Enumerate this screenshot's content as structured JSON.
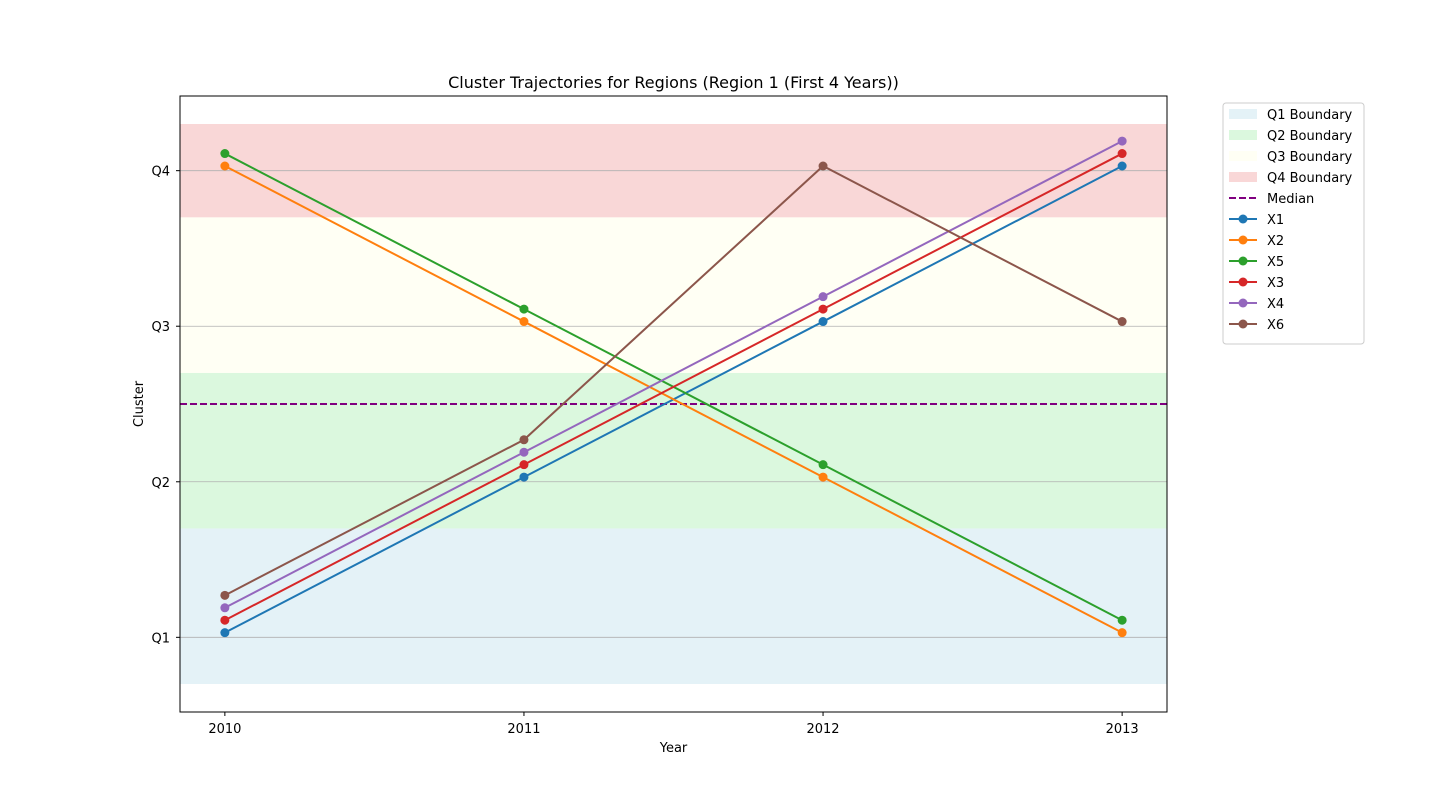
{
  "chart_data": {
    "type": "line",
    "title": "Cluster Trajectories for Regions (Region 1 (First 4 Years))",
    "xlabel": "Year",
    "ylabel": "Cluster",
    "x": [
      2010,
      2011,
      2012,
      2013
    ],
    "x_tick_labels": [
      "2010",
      "2011",
      "2012",
      "2013"
    ],
    "y_ticks": [
      1,
      2,
      3,
      4
    ],
    "y_tick_labels": [
      "Q1",
      "Q2",
      "Q3",
      "Q4"
    ],
    "xlim": [
      2009.85,
      2013.15
    ],
    "ylim": [
      0.52,
      4.48
    ],
    "grid": "horizontal",
    "legend_position": "outside top-right",
    "bands": [
      {
        "name": "Q1 Boundary",
        "range": [
          0.7,
          1.7
        ],
        "color": "#e4f2f7"
      },
      {
        "name": "Q2 Boundary",
        "range": [
          1.7,
          2.7
        ],
        "color": "#dbf8de"
      },
      {
        "name": "Q3 Boundary",
        "range": [
          2.7,
          3.7
        ],
        "color": "#fffff4"
      },
      {
        "name": "Q4 Boundary",
        "range": [
          3.7,
          4.3
        ],
        "color": "#f9d7d7"
      }
    ],
    "median": {
      "name": "Median",
      "value": 2.5,
      "color": "#800080"
    },
    "series": [
      {
        "name": "X1",
        "color": "#1f77b4",
        "values": [
          1.03,
          2.03,
          3.03,
          4.03
        ]
      },
      {
        "name": "X2",
        "color": "#ff7f0e",
        "values": [
          4.03,
          3.03,
          2.03,
          1.03
        ]
      },
      {
        "name": "X5",
        "color": "#2ca02c",
        "values": [
          4.11,
          3.11,
          2.11,
          1.11
        ]
      },
      {
        "name": "X3",
        "color": "#d62728",
        "values": [
          1.11,
          2.11,
          3.11,
          4.11
        ]
      },
      {
        "name": "X4",
        "color": "#9467bd",
        "values": [
          1.19,
          2.19,
          3.19,
          4.19
        ]
      },
      {
        "name": "X6",
        "color": "#8c564b",
        "values": [
          1.27,
          2.27,
          4.03,
          3.03
        ]
      }
    ]
  }
}
